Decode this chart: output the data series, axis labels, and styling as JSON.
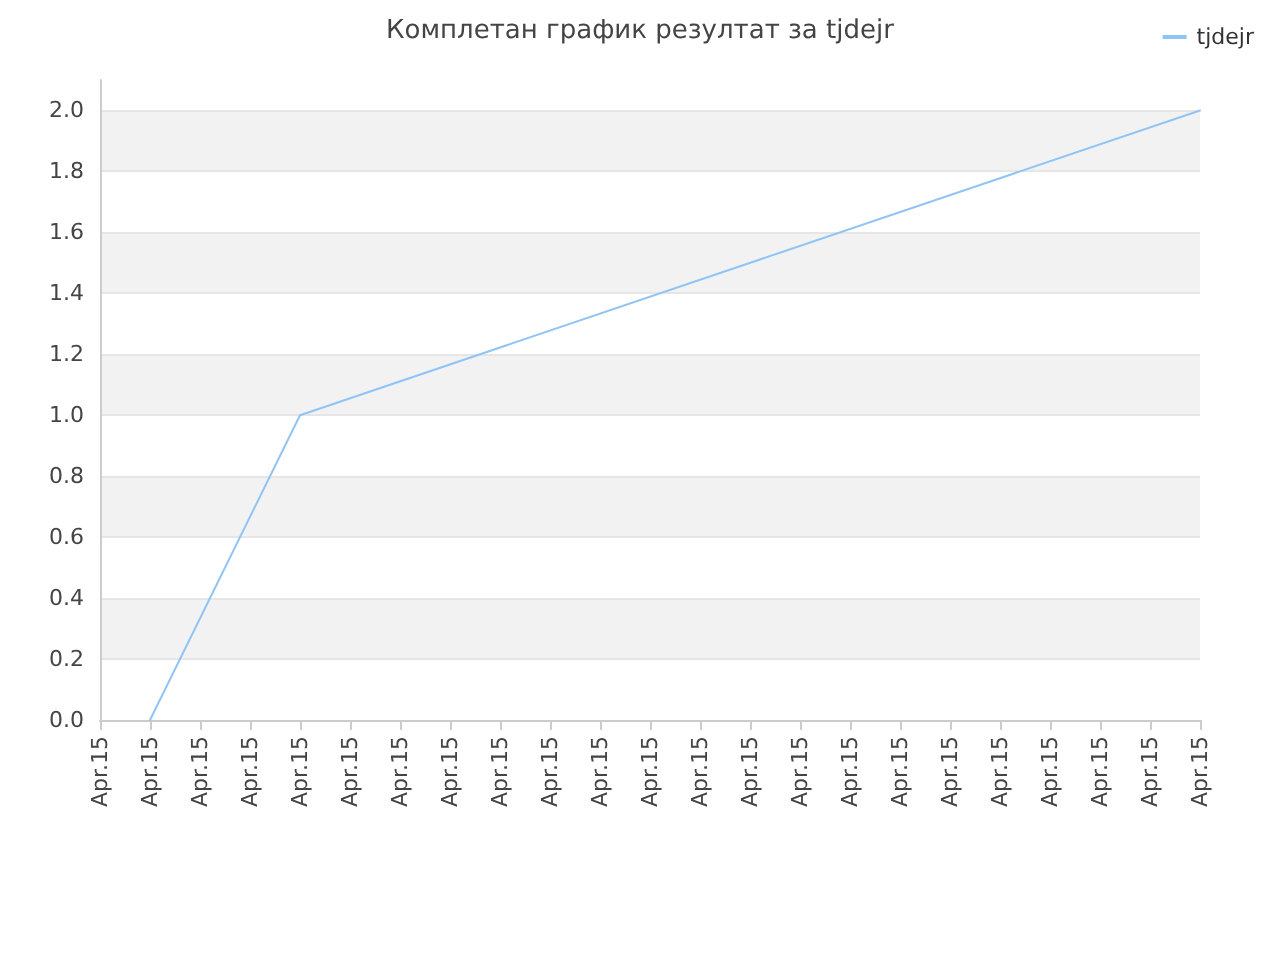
{
  "chart_data": {
    "type": "line",
    "title": "Комплетан график резултат за tjdejr",
    "categories": [
      "Apr.15",
      "Apr.15",
      "Apr.15",
      "Apr.15",
      "Apr.15",
      "Apr.15",
      "Apr.15",
      "Apr.15",
      "Apr.15",
      "Apr.15",
      "Apr.15",
      "Apr.15",
      "Apr.15",
      "Apr.15",
      "Apr.15",
      "Apr.15",
      "Apr.15",
      "Apr.15",
      "Apr.15",
      "Apr.15",
      "Apr.15",
      "Apr.15",
      "Apr.15"
    ],
    "series": [
      {
        "name": "tjdejr",
        "color": "#90c4f5",
        "values": [
          null,
          0,
          null,
          null,
          1.0,
          null,
          null,
          null,
          null,
          null,
          null,
          null,
          null,
          null,
          null,
          null,
          null,
          null,
          null,
          null,
          null,
          null,
          2.0
        ]
      }
    ],
    "ylim": [
      0,
      2.1
    ],
    "yticks": [
      {
        "value": 0,
        "label": "0.0"
      },
      0.2,
      0.4,
      0.6,
      0.8,
      {
        "value": 1,
        "label": "1.0"
      },
      1.2,
      1.4,
      1.6,
      1.8,
      {
        "value": 2,
        "label": "2.0"
      }
    ],
    "grid": "y",
    "legend": "top right",
    "marker": "none",
    "line_style": "solid"
  }
}
